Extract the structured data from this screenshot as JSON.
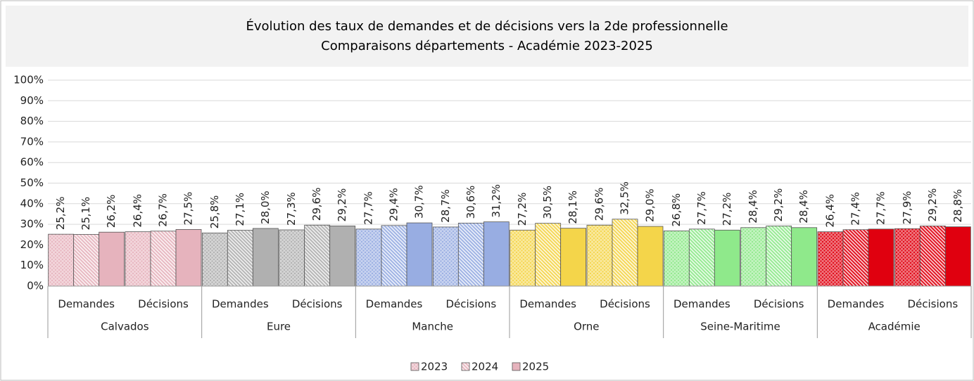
{
  "chart_data": {
    "type": "bar",
    "title": "Évolution des taux de demandes et de décisions vers la 2de professionnelle",
    "subtitle": "Comparaisons départements - Académie 2023-2025",
    "categories": [
      "Demandes",
      "Décisions",
      "Demandes",
      "Décisions",
      "Demandes",
      "Décisions",
      "Demandes",
      "Décisions",
      "Demandes",
      "Décisions",
      "Demandes",
      "Décisions"
    ],
    "groups": [
      "Calvados",
      "Eure",
      "Manche",
      "Orne",
      "Seine-Maritime",
      "Académie"
    ],
    "group_colors": [
      "#e6b3bd",
      "#b0b0b0",
      "#98ade2",
      "#f4d54a",
      "#8fe98b",
      "#e0000f"
    ],
    "series": [
      {
        "name": "2023",
        "color": "#e6b3bd",
        "pattern": "dots",
        "values": [
          25.2,
          26.4,
          25.8,
          27.3,
          27.7,
          28.7,
          27.2,
          29.6,
          26.8,
          28.4,
          26.4,
          27.9
        ],
        "value_labels": [
          "25,2%",
          "26,4%",
          "25,8%",
          "27,3%",
          "27,7%",
          "28,7%",
          "27,2%",
          "29,6%",
          "26,8%",
          "28,4%",
          "26,4%",
          "27,9%"
        ]
      },
      {
        "name": "2024",
        "color": "#e6b3bd",
        "pattern": "hatch",
        "values": [
          25.1,
          26.7,
          27.1,
          29.6,
          29.4,
          30.6,
          30.5,
          32.5,
          27.7,
          29.2,
          27.4,
          29.2
        ],
        "value_labels": [
          "25,1%",
          "26,7%",
          "27,1%",
          "29,6%",
          "29,4%",
          "30,6%",
          "30,5%",
          "32,5%",
          "27,7%",
          "29,2%",
          "27,4%",
          "29,2%"
        ]
      },
      {
        "name": "2025",
        "color": "#e6b3bd",
        "pattern": "solid",
        "values": [
          26.2,
          27.5,
          28.0,
          29.2,
          30.7,
          31.2,
          28.1,
          29.0,
          27.2,
          28.4,
          27.7,
          28.8
        ],
        "value_labels": [
          "26,2%",
          "27,5%",
          "28,0%",
          "29,2%",
          "30,7%",
          "31,2%",
          "28,1%",
          "29,0%",
          "27,2%",
          "28,4%",
          "27,7%",
          "28,8%"
        ]
      }
    ],
    "ylim": [
      0,
      100
    ],
    "yticks": [
      {
        "value": 0,
        "label": "0%"
      },
      {
        "value": 10,
        "label": "10%"
      },
      {
        "value": 20,
        "label": "20%"
      },
      {
        "value": 30,
        "label": "30%"
      },
      {
        "value": 40,
        "label": "40%"
      },
      {
        "value": 50,
        "label": "50%"
      },
      {
        "value": 60,
        "label": "60%"
      },
      {
        "value": 70,
        "label": "70%"
      },
      {
        "value": 80,
        "label": "80%"
      },
      {
        "value": 90,
        "label": "90%"
      },
      {
        "value": 100,
        "label": "100%"
      }
    ],
    "grid": true,
    "legend": "bottom"
  }
}
